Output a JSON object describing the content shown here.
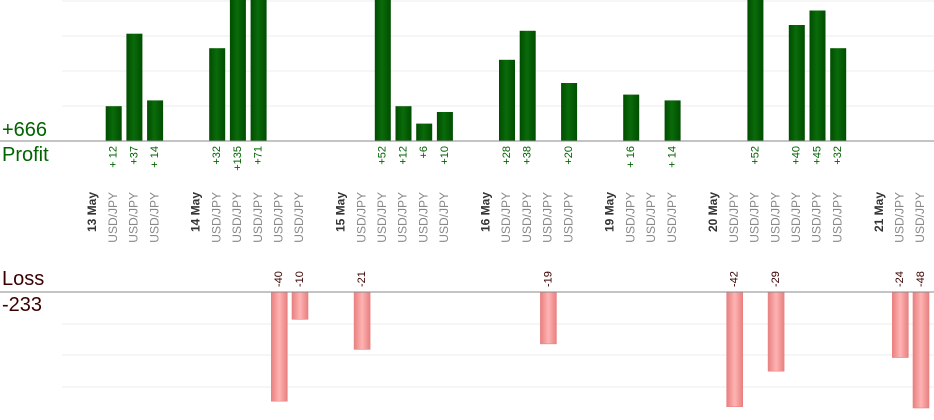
{
  "summary": {
    "profit_total": "+666",
    "profit_label": "Profit",
    "loss_label": "Loss",
    "loss_total": "-233"
  },
  "colors": {
    "profit_bar": "#0a6b0a",
    "profit_bar_edge": "#004d00",
    "profit_text": "#006400",
    "loss_bar": "#ffb3b3",
    "loss_bar_edge": "#e88080",
    "loss_text": "#3a0000",
    "date_text": "#333333",
    "pair_text": "#888888"
  },
  "chart_data": {
    "type": "bar",
    "columns": [
      {
        "kind": "date",
        "label": "13 May"
      },
      {
        "kind": "trade",
        "label": "USD/JPY",
        "value": 12,
        "value_label": "+ 12"
      },
      {
        "kind": "trade",
        "label": "USD/JPY",
        "value": 37,
        "value_label": "+37"
      },
      {
        "kind": "trade",
        "label": "USD/JPY",
        "value": 14,
        "value_label": "+ 14"
      },
      {
        "kind": "gap"
      },
      {
        "kind": "date",
        "label": "14 May"
      },
      {
        "kind": "trade",
        "label": "USD/JPY",
        "value": 32,
        "value_label": "+32"
      },
      {
        "kind": "trade",
        "label": "USD/JPY",
        "value": 135,
        "value_label": "+135"
      },
      {
        "kind": "trade",
        "label": "USD/JPY",
        "value": 71,
        "value_label": "+71"
      },
      {
        "kind": "trade",
        "label": "USD/JPY",
        "value": -40,
        "value_label": "-40"
      },
      {
        "kind": "trade",
        "label": "USD/JPY",
        "value": -10,
        "value_label": "-10"
      },
      {
        "kind": "gap"
      },
      {
        "kind": "date",
        "label": "15 May"
      },
      {
        "kind": "trade",
        "label": "USD/JPY",
        "value": -21,
        "value_label": "-21"
      },
      {
        "kind": "trade",
        "label": "USD/JPY",
        "value": 52,
        "value_label": "+52"
      },
      {
        "kind": "trade",
        "label": "USD/JPY",
        "value": 12,
        "value_label": "+12"
      },
      {
        "kind": "trade",
        "label": "USD/JPY",
        "value": 6,
        "value_label": "+6"
      },
      {
        "kind": "trade",
        "label": "USD/JPY",
        "value": 10,
        "value_label": "+10"
      },
      {
        "kind": "gap"
      },
      {
        "kind": "date",
        "label": "16 May"
      },
      {
        "kind": "trade",
        "label": "USD/JPY",
        "value": 28,
        "value_label": "+28"
      },
      {
        "kind": "trade",
        "label": "USD/JPY",
        "value": 38,
        "value_label": "+38"
      },
      {
        "kind": "trade",
        "label": "USD/JPY",
        "value": -19,
        "value_label": "-19"
      },
      {
        "kind": "trade",
        "label": "USD/JPY",
        "value": 20,
        "value_label": "+20"
      },
      {
        "kind": "gap"
      },
      {
        "kind": "date",
        "label": "19 May"
      },
      {
        "kind": "trade",
        "label": "USD/JPY",
        "value": 16,
        "value_label": "+ 16"
      },
      {
        "kind": "trade",
        "label": "USD/JPY"
      },
      {
        "kind": "trade",
        "label": "USD/JPY",
        "value": 14,
        "value_label": "+ 14"
      },
      {
        "kind": "gap"
      },
      {
        "kind": "date",
        "label": "20 May"
      },
      {
        "kind": "trade",
        "label": "USD/JPY",
        "value": -42,
        "value_label": "-42"
      },
      {
        "kind": "trade",
        "label": "USD/JPY",
        "value": 52,
        "value_label": "+52"
      },
      {
        "kind": "trade",
        "label": "USD/JPY",
        "value": -29,
        "value_label": "-29"
      },
      {
        "kind": "trade",
        "label": "USD/JPY",
        "value": 40,
        "value_label": "+40"
      },
      {
        "kind": "trade",
        "label": "USD/JPY",
        "value": 45,
        "value_label": "+45"
      },
      {
        "kind": "trade",
        "label": "USD/JPY",
        "value": 32,
        "value_label": "+32"
      },
      {
        "kind": "gap"
      },
      {
        "kind": "date",
        "label": "21 May"
      },
      {
        "kind": "trade",
        "label": "USD/JPY",
        "value": -24,
        "value_label": "-24"
      },
      {
        "kind": "trade",
        "label": "USD/JPY",
        "value": -48,
        "value_label": "-48"
      }
    ],
    "profit_visible_max": 40,
    "loss_visible_max": 42,
    "grid": true,
    "legend": "none"
  }
}
